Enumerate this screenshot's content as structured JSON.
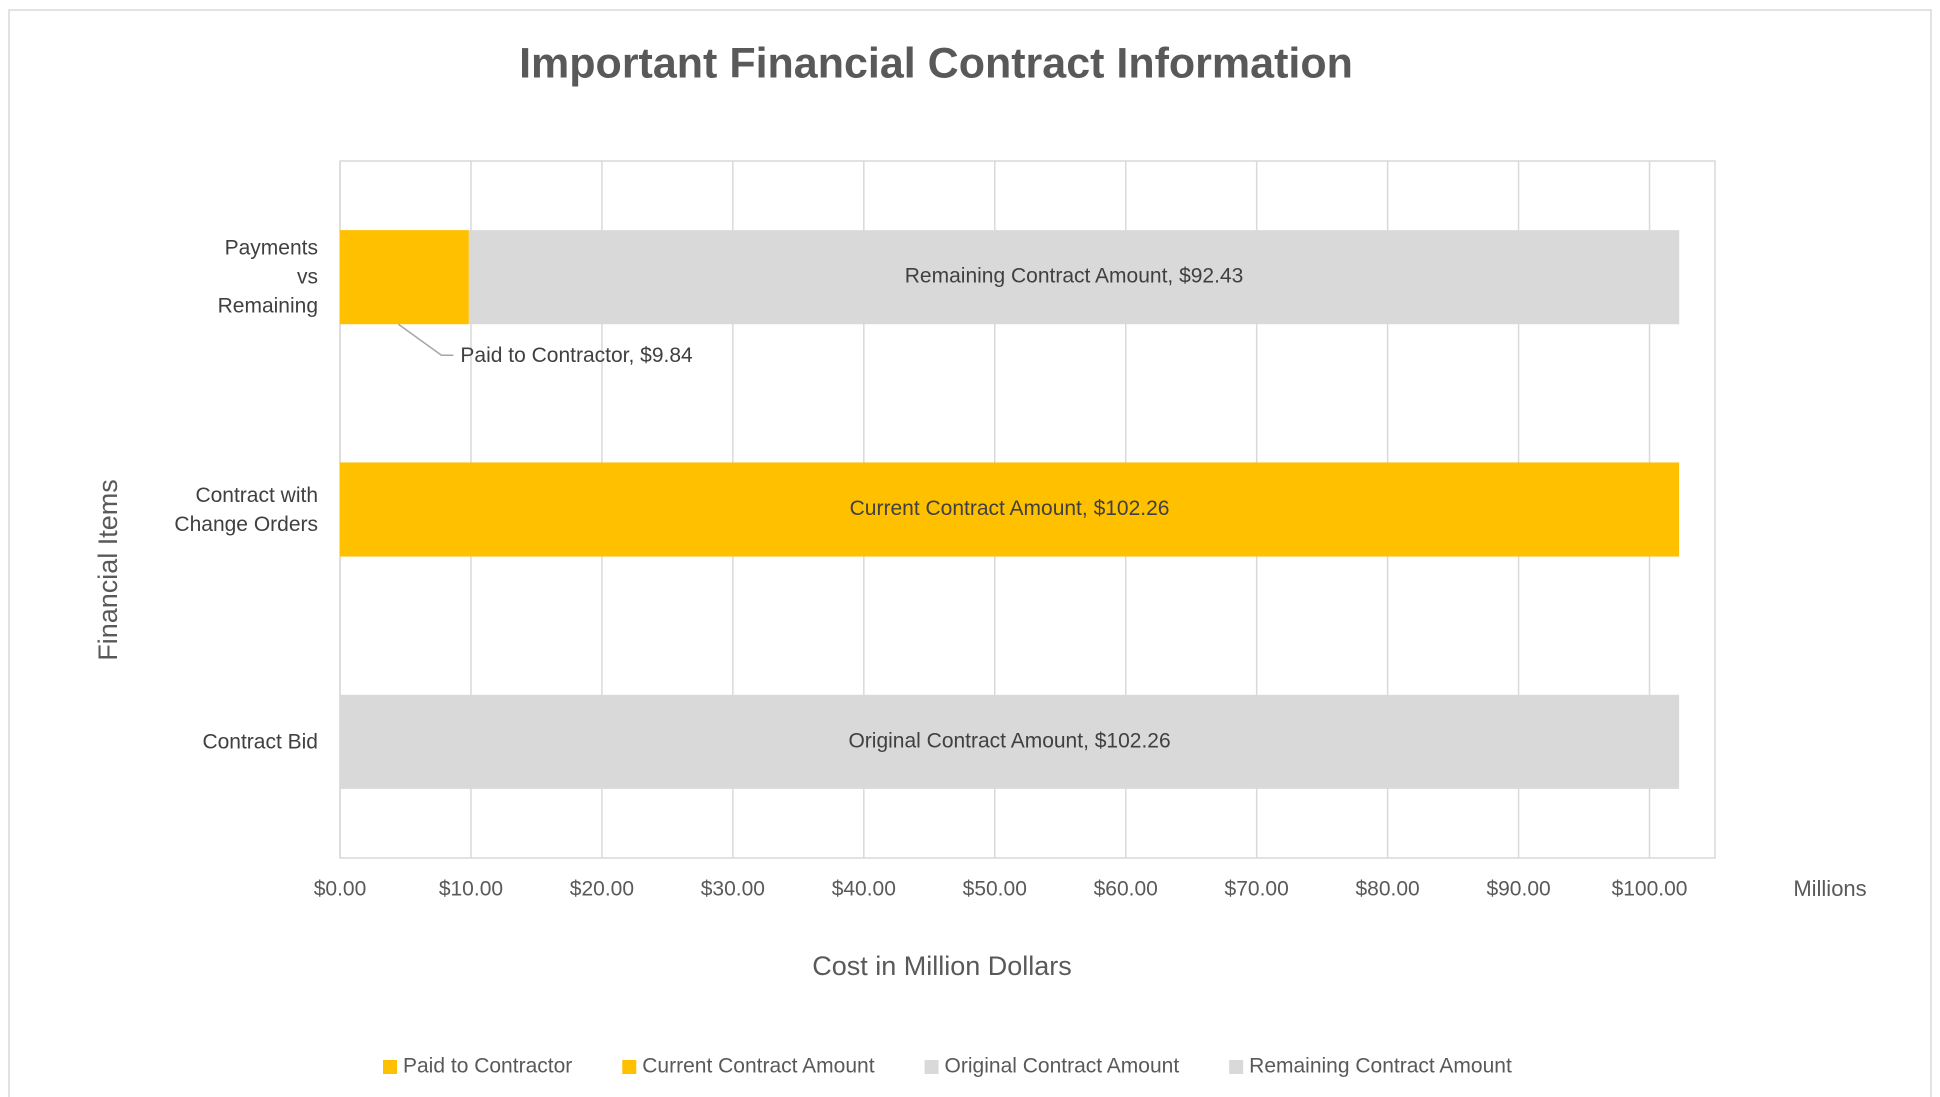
{
  "chart_data": {
    "type": "stacked_bar_horizontal",
    "title": "Important Financial Contract Information",
    "categories": [
      "Contract Bid",
      "Contract with\nChange Orders",
      "Payments\nvs\nRemaining"
    ],
    "series": [
      {
        "name": "Paid to Contractor",
        "color": "#FFC000",
        "values": [
          null,
          null,
          9.84
        ],
        "value_labels": [
          null,
          null,
          "Paid to Contractor,  $9.84"
        ]
      },
      {
        "name": "Current Contract Amount",
        "color": "#FFC000",
        "values": [
          null,
          102.26,
          null
        ],
        "value_labels": [
          null,
          "Current Contract Amount,  $102.26",
          null
        ]
      },
      {
        "name": "Original Contract Amount",
        "color": "#D9D9D9",
        "values": [
          102.26,
          null,
          null
        ],
        "value_labels": [
          "Original Contract Amount,  $102.26",
          null,
          null
        ]
      },
      {
        "name": "Remaining Contract Amount",
        "color": "#D9D9D9",
        "values": [
          null,
          null,
          92.43
        ],
        "value_labels": [
          null,
          null,
          "Remaining Contract Amount,  $92.43"
        ]
      }
    ],
    "xlim": [
      0,
      105
    ],
    "xticks": [
      {
        "value": 0,
        "label": "$0.00"
      },
      {
        "value": 10,
        "label": "$10.00"
      },
      {
        "value": 20,
        "label": "$20.00"
      },
      {
        "value": 30,
        "label": "$30.00"
      },
      {
        "value": 40,
        "label": "$40.00"
      },
      {
        "value": 50,
        "label": "$50.00"
      },
      {
        "value": 60,
        "label": "$60.00"
      },
      {
        "value": 70,
        "label": "$70.00"
      },
      {
        "value": 80,
        "label": "$80.00"
      },
      {
        "value": 90,
        "label": "$90.00"
      },
      {
        "value": 100,
        "label": "$100.00"
      }
    ],
    "x_unit_label": "Millions",
    "x_label": "Cost in Million Dollars",
    "y_label": "Financial Items",
    "grid": true,
    "legend": "bottom"
  }
}
